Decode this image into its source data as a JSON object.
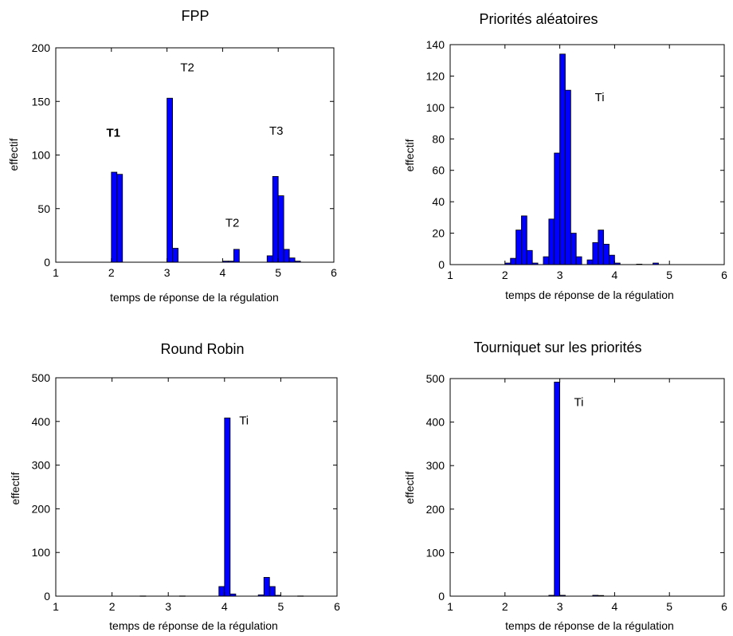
{
  "colors": {
    "bar": "#0000ff",
    "frame": "#000000"
  },
  "chart_data": [
    {
      "type": "bar",
      "title": "FPP",
      "xlabel": "temps de réponse de la régulation",
      "ylabel": "effectif",
      "xlim": [
        1,
        6
      ],
      "ylim": [
        0,
        200
      ],
      "xticks": [
        1,
        2,
        3,
        4,
        5,
        6
      ],
      "yticks": [
        0,
        50,
        100,
        150,
        200
      ],
      "bin_width": 0.1,
      "bins": [
        {
          "x": 2.0,
          "y": 84
        },
        {
          "x": 2.1,
          "y": 82
        },
        {
          "x": 3.0,
          "y": 153
        },
        {
          "x": 3.1,
          "y": 13
        },
        {
          "x": 4.0,
          "y": 1
        },
        {
          "x": 4.1,
          "y": 1
        },
        {
          "x": 4.2,
          "y": 12
        },
        {
          "x": 4.8,
          "y": 6
        },
        {
          "x": 4.9,
          "y": 80
        },
        {
          "x": 5.0,
          "y": 62
        },
        {
          "x": 5.1,
          "y": 12
        },
        {
          "x": 5.2,
          "y": 4
        },
        {
          "x": 5.3,
          "y": 1
        }
      ],
      "annotations": [
        {
          "text": "T1",
          "x": 1.91,
          "y": 117,
          "bold": true
        },
        {
          "text": "T2",
          "x": 3.24,
          "y": 178,
          "bold": false
        },
        {
          "text": "T2",
          "x": 4.05,
          "y": 33,
          "bold": false
        },
        {
          "text": "T3",
          "x": 4.84,
          "y": 119,
          "bold": false
        }
      ]
    },
    {
      "type": "bar",
      "title": "Priorités aléatoires",
      "xlabel": "temps de réponse de la régulation",
      "ylabel": "effectif",
      "xlim": [
        1,
        6
      ],
      "ylim": [
        0,
        140
      ],
      "xticks": [
        1,
        2,
        3,
        4,
        5,
        6
      ],
      "yticks": [
        0,
        20,
        40,
        60,
        80,
        100,
        120,
        140
      ],
      "bin_width": 0.1,
      "bins": [
        {
          "x": 2.0,
          "y": 1
        },
        {
          "x": 2.1,
          "y": 4
        },
        {
          "x": 2.2,
          "y": 22
        },
        {
          "x": 2.3,
          "y": 31
        },
        {
          "x": 2.4,
          "y": 9
        },
        {
          "x": 2.5,
          "y": 1
        },
        {
          "x": 2.7,
          "y": 5
        },
        {
          "x": 2.8,
          "y": 29
        },
        {
          "x": 2.9,
          "y": 71
        },
        {
          "x": 3.0,
          "y": 134
        },
        {
          "x": 3.1,
          "y": 111
        },
        {
          "x": 3.2,
          "y": 20
        },
        {
          "x": 3.3,
          "y": 5
        },
        {
          "x": 3.5,
          "y": 3
        },
        {
          "x": 3.6,
          "y": 14
        },
        {
          "x": 3.7,
          "y": 22
        },
        {
          "x": 3.8,
          "y": 13
        },
        {
          "x": 3.9,
          "y": 6
        },
        {
          "x": 4.0,
          "y": 1
        },
        {
          "x": 4.4,
          "y": 0.3
        },
        {
          "x": 4.7,
          "y": 1
        }
      ],
      "annotations": [
        {
          "text": "Ti",
          "x": 3.64,
          "y": 104,
          "bold": false
        }
      ]
    },
    {
      "type": "bar",
      "title": "Round Robin",
      "xlabel": "temps de réponse de la régulation",
      "ylabel": "effectif",
      "xlim": [
        1,
        6
      ],
      "ylim": [
        0,
        500
      ],
      "xticks": [
        1,
        2,
        3,
        4,
        5,
        6
      ],
      "yticks": [
        0,
        100,
        200,
        300,
        400,
        500
      ],
      "bin_width": 0.1,
      "bins": [
        {
          "x": 2.5,
          "y": 0.5
        },
        {
          "x": 3.2,
          "y": 0.5
        },
        {
          "x": 3.9,
          "y": 22
        },
        {
          "x": 4.0,
          "y": 408
        },
        {
          "x": 4.1,
          "y": 5
        },
        {
          "x": 4.6,
          "y": 3
        },
        {
          "x": 4.7,
          "y": 43
        },
        {
          "x": 4.8,
          "y": 22
        },
        {
          "x": 4.9,
          "y": 2
        },
        {
          "x": 5.3,
          "y": 0.5
        }
      ],
      "annotations": [
        {
          "text": "Ti",
          "x": 4.26,
          "y": 393,
          "bold": false
        }
      ]
    },
    {
      "type": "bar",
      "title": "Tourniquet sur les priorités",
      "xlabel": "temps de réponse de la régulation",
      "ylabel": "effectif",
      "xlim": [
        1,
        6
      ],
      "ylim": [
        0,
        500
      ],
      "xticks": [
        1,
        2,
        3,
        4,
        5,
        6
      ],
      "yticks": [
        0,
        100,
        200,
        300,
        400,
        500
      ],
      "bin_width": 0.1,
      "bins": [
        {
          "x": 2.8,
          "y": 2
        },
        {
          "x": 2.9,
          "y": 492
        },
        {
          "x": 3.0,
          "y": 2
        },
        {
          "x": 3.6,
          "y": 2
        },
        {
          "x": 3.7,
          "y": 1.5
        }
      ],
      "annotations": [
        {
          "text": "Ti",
          "x": 3.26,
          "y": 437,
          "bold": false
        }
      ]
    }
  ]
}
